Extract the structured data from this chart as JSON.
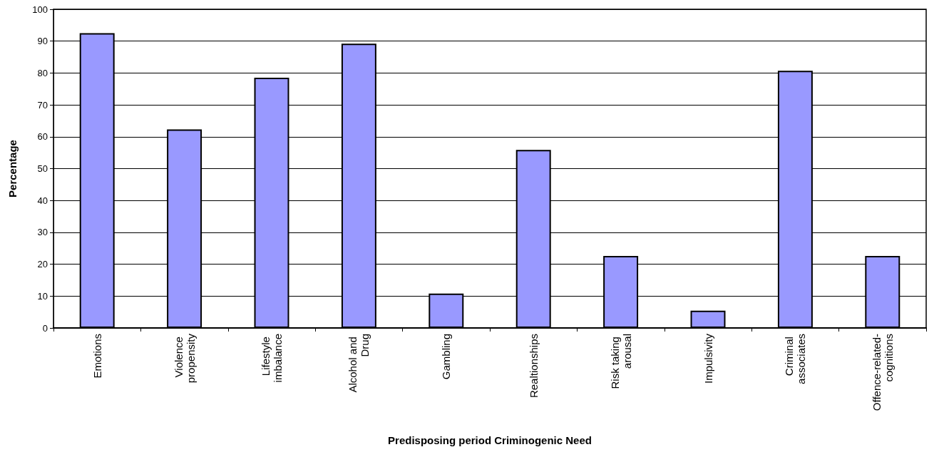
{
  "chart_data": {
    "type": "bar",
    "xlabel": "Predisposing period Criminogenic Need",
    "ylabel": "Percentage",
    "categories": [
      "Emotions",
      "Violence propensity",
      "Lifestyle imbalance",
      "Alcohol and Drug",
      "Gambling",
      "Realtionships",
      "Risk taking arousal",
      "Impulsivity",
      "Criminal associates",
      "Offence-related-cognitions"
    ],
    "values": [
      92.5,
      62.3,
      78.5,
      89.2,
      10.8,
      55.9,
      22.6,
      5.4,
      80.7,
      22.6
    ],
    "color": "#9999ff",
    "ylim": [
      0,
      100
    ],
    "yticks": [
      0,
      10,
      20,
      30,
      40,
      50,
      60,
      70,
      80,
      90,
      100
    ],
    "grid": "y"
  }
}
